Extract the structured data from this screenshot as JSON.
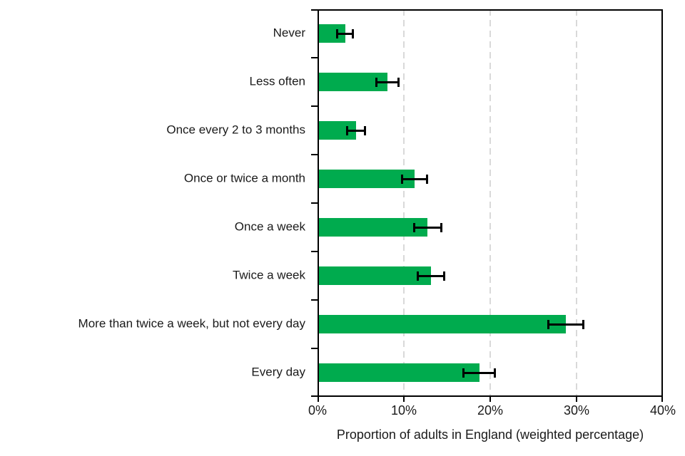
{
  "chart_data": {
    "type": "bar",
    "orientation": "horizontal",
    "title": "",
    "xlabel": "Proportion of adults in England (weighted percentage)",
    "ylabel": "",
    "categories": [
      "Never",
      "Less often",
      "Once every 2 to 3 months",
      "Once or twice a month",
      "Once a week",
      "Twice a week",
      "More than twice a week, but not every day",
      "Every day"
    ],
    "values": [
      3.2,
      8.1,
      4.5,
      11.2,
      12.7,
      13.1,
      28.8,
      18.8
    ],
    "error_low": [
      2.3,
      6.8,
      3.4,
      9.8,
      11.2,
      11.6,
      26.7,
      16.9
    ],
    "error_high": [
      4.1,
      9.4,
      5.5,
      12.7,
      14.3,
      14.7,
      30.8,
      20.5
    ],
    "xlim": [
      0,
      40
    ],
    "x_tick_labels": [
      "0%",
      "10%",
      "20%",
      "30%",
      "40%"
    ],
    "x_tick_values": [
      0,
      10,
      20,
      30,
      40
    ],
    "gridline_values": [
      10,
      20,
      30
    ],
    "grid": "vertical-dashed",
    "legend": "none",
    "bar_color": "#00AB4E",
    "error_color": "#000000",
    "gridline_color": "#D9D9D9",
    "frame_color": "#000000",
    "text_color": "#1a1a1a"
  }
}
